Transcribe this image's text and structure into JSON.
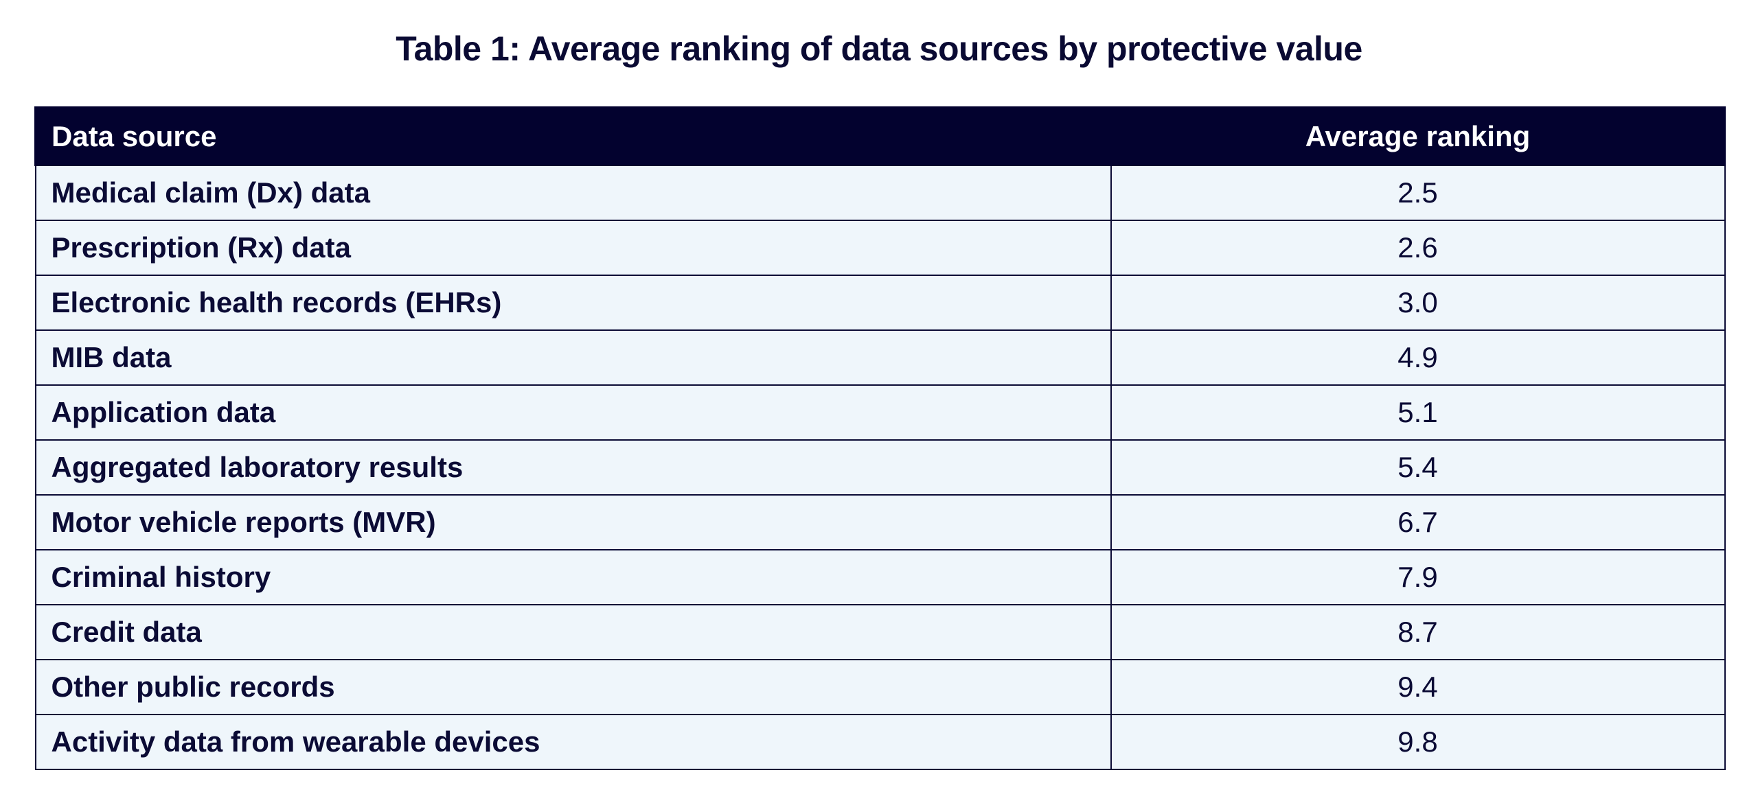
{
  "title": "Table 1: Average ranking of data sources by protective value",
  "table": {
    "headers": {
      "source": "Data source",
      "ranking": "Average ranking"
    },
    "rows": [
      {
        "source": "Medical claim (Dx) data",
        "ranking": "2.5"
      },
      {
        "source": "Prescription (Rx) data",
        "ranking": "2.6"
      },
      {
        "source": "Electronic health records (EHRs)",
        "ranking": "3.0"
      },
      {
        "source": "MIB data",
        "ranking": "4.9"
      },
      {
        "source": "Application data",
        "ranking": "5.1"
      },
      {
        "source": "Aggregated laboratory results",
        "ranking": "5.4"
      },
      {
        "source": "Motor vehicle reports (MVR)",
        "ranking": "6.7"
      },
      {
        "source": "Criminal history",
        "ranking": "7.9"
      },
      {
        "source": "Credit data",
        "ranking": "8.7"
      },
      {
        "source": "Other public records",
        "ranking": "9.4"
      },
      {
        "source": "Activity data from wearable devices",
        "ranking": "9.8"
      }
    ]
  },
  "colors": {
    "header_bg": "#03022f",
    "row_bg": "#eff6fb",
    "text": "#0b0b35"
  }
}
